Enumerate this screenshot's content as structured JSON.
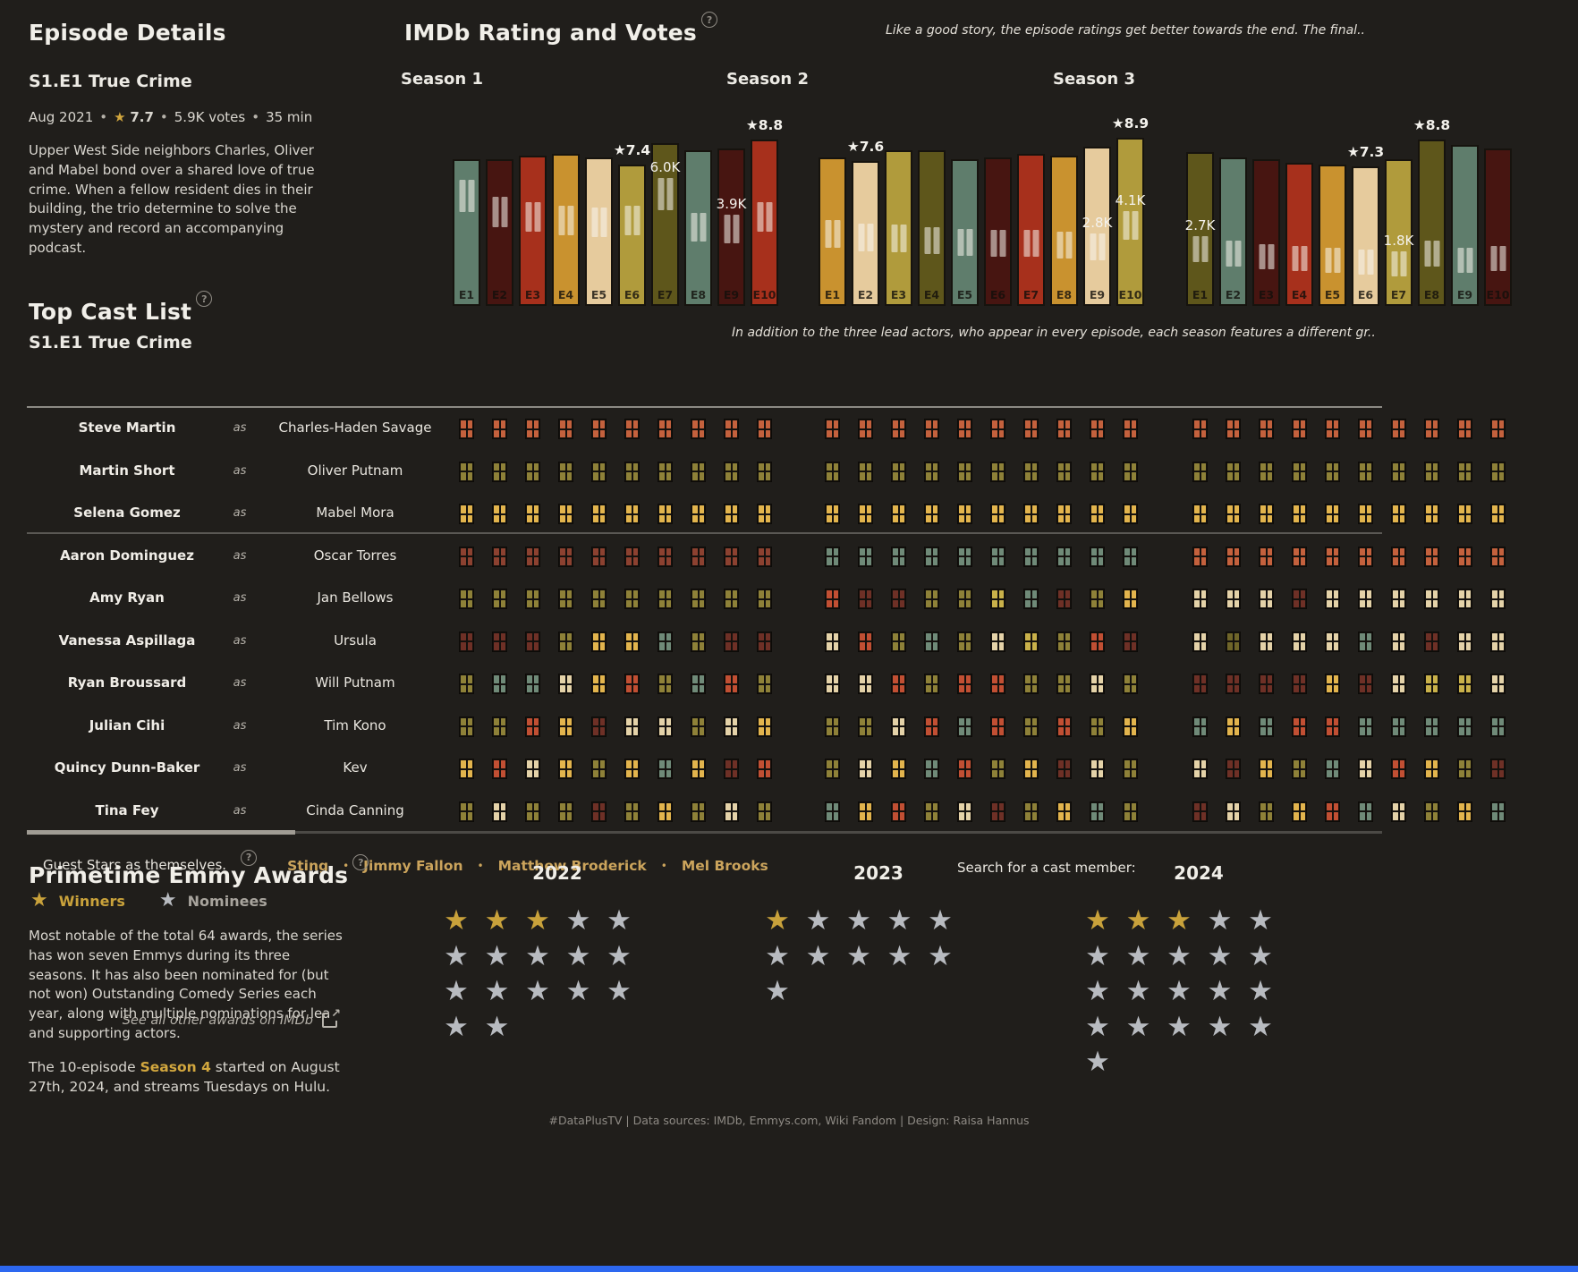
{
  "app": {
    "bg": "#201e1b",
    "accent_bar_color": "#2d68f0",
    "footer_text": "#DataPlusTV | Data sources: IMDb, Emmys.com, Wiki Fandom | Design: Raisa Hannus",
    "help_glyph": "?"
  },
  "episode_details": {
    "section_title": "Episode Details",
    "episode_title": "S1.E1 True Crime",
    "meta": {
      "date": "Aug 2021",
      "star": "★",
      "rating": "7.7",
      "votes": "5.9K votes",
      "runtime": "35 min",
      "sep": "•"
    },
    "description": "Upper West Side neighbors Charles, Oliver and Mabel bond over a shared love of true crime. When a fellow resident dies in their building, the trio determine to solve the mystery and record an accompanying podcast."
  },
  "rating_section": {
    "title": "IMDb Rating and Votes",
    "annotation": "Like a good story, the episode ratings get better towards the end. The final.."
  },
  "chart_data": {
    "type": "bar",
    "title": "IMDb Rating and Votes",
    "ylabel": "IMDb rating (bar height) and votes (window position)",
    "grid": false,
    "palette": [
      "#5f7d6c",
      "#471511",
      "#a7301c",
      "#c9922f",
      "#e6cb9d",
      "#b09b3c",
      "#5e561b"
    ],
    "episode_labels": [
      "E1",
      "E2",
      "E3",
      "E4",
      "E5",
      "E6",
      "E7",
      "E8",
      "E9",
      "E10"
    ],
    "seasons": [
      {
        "label": "Season 1",
        "ratings": [
          7.7,
          7.7,
          7.9,
          8.0,
          7.8,
          7.4,
          8.6,
          8.2,
          8.3,
          8.8
        ],
        "votes_k": [
          5.9,
          4.9,
          4.6,
          4.4,
          4.3,
          4.4,
          6.0,
          4.0,
          3.9,
          4.6
        ],
        "callouts": [
          {
            "ep": 5,
            "kind": "rating",
            "text": "★7.4"
          },
          {
            "ep": 6,
            "kind": "votes",
            "text": "6.0K"
          },
          {
            "ep": 8,
            "kind": "votes",
            "text": "3.9K"
          },
          {
            "ep": 9,
            "kind": "rating",
            "text": "★8.8"
          }
        ]
      },
      {
        "label": "Season 2",
        "ratings": [
          7.8,
          7.6,
          8.2,
          8.2,
          7.7,
          7.8,
          8.0,
          7.9,
          8.4,
          8.9
        ],
        "votes_k": [
          3.6,
          3.4,
          3.3,
          3.2,
          3.1,
          3.0,
          3.0,
          2.9,
          2.8,
          4.1
        ],
        "callouts": [
          {
            "ep": 1,
            "kind": "rating",
            "text": "★7.6"
          },
          {
            "ep": 8,
            "kind": "votes",
            "text": "2.8K"
          },
          {
            "ep": 9,
            "kind": "rating",
            "text": "★8.9"
          },
          {
            "ep": 9,
            "kind": "votes",
            "text": "4.1K"
          }
        ]
      },
      {
        "label": "Season 3",
        "ratings": [
          8.1,
          7.8,
          7.7,
          7.5,
          7.4,
          7.3,
          7.7,
          8.8,
          8.5,
          8.3
        ],
        "votes_k": [
          2.7,
          2.4,
          2.2,
          2.1,
          2.0,
          1.9,
          1.8,
          2.4,
          2.0,
          2.1
        ],
        "callouts": [
          {
            "ep": 0,
            "kind": "votes",
            "text": "2.7K"
          },
          {
            "ep": 5,
            "kind": "rating",
            "text": "★7.3"
          },
          {
            "ep": 6,
            "kind": "votes",
            "text": "1.8K"
          },
          {
            "ep": 7,
            "kind": "rating",
            "text": "★8.8"
          }
        ]
      }
    ]
  },
  "cast_section": {
    "title": "Top Cast List",
    "subtitle": "S1.E1 True Crime",
    "annotation": "In addition to the three lead actors, who appear in every episode, each season features a different gr..",
    "as_label": "as",
    "search_label": "Search for a cast member:",
    "palette": {
      "s": "#c4613d",
      "o": "#8e8138",
      "g": "#e2b44d",
      "b": "#8c4130",
      "m": "#6e3026",
      "t": "#6f8a78",
      "c": "#e4d2a8",
      "r": "#c14f33",
      "d": "#6f6529",
      "y": "#c9b14a"
    },
    "rows": [
      {
        "actor": "Steve Martin",
        "character": "Charles-Haden Savage",
        "cells": [
          "ssssssssss",
          "ssssssssss",
          "ssssssssss"
        ]
      },
      {
        "actor": "Martin Short",
        "character": "Oliver Putnam",
        "cells": [
          "oooooooooo",
          "oooooooooo",
          "oooooooooo"
        ]
      },
      {
        "actor": "Selena Gomez",
        "character": "Mabel Mora",
        "cells": [
          "gggggggggg",
          "gggggggggg",
          "gggggggggg"
        ]
      },
      {
        "actor": "Aaron Dominguez",
        "character": "Oscar Torres",
        "cells": [
          "bbbbbbbbbb",
          "tttttttttt",
          "ssssssssss"
        ]
      },
      {
        "actor": "Amy Ryan",
        "character": "Jan Bellows",
        "cells": [
          "oooooooooo",
          "rmmooytmog",
          "cccmcccccc"
        ]
      },
      {
        "actor": "Vanessa Aspillaga",
        "character": "Ursula",
        "cells": [
          "mmmoggtomm",
          "crotocyorm",
          "cdccctcmcc"
        ]
      },
      {
        "actor": "Ryan Broussard",
        "character": "Will Putnam",
        "cells": [
          "ottcgrotro",
          "ccrorrooco",
          "mmmmgmcyyc"
        ]
      },
      {
        "actor": "Julian Cihi",
        "character": "Tim Kono",
        "cells": [
          "oorgmccocg",
          "oocrtrorog",
          "tgtrrttttt"
        ]
      },
      {
        "actor": "Quincy Dunn-Baker",
        "character": "Kev",
        "cells": [
          "grcgogtgmr",
          "ocgtrogmco",
          "cmgotcrgom"
        ]
      },
      {
        "actor": "Tina Fey",
        "character": "Cinda Canning",
        "cells": [
          "ocoomogoco",
          "tgrocmogto",
          "mcogrtcogt"
        ]
      }
    ],
    "guest_label": "Guest Stars as themselves.",
    "guest_sep": "•",
    "guest_stars": [
      "Sting",
      "Jimmy Fallon",
      "Matthew Broderick",
      "Mel Brooks"
    ]
  },
  "emmy_section": {
    "title": "Primetime Emmy Awards",
    "star_glyph": "★",
    "winner_color": "#c9a23b",
    "nominee_color": "#b8bbc0",
    "legend": {
      "winners": "Winners",
      "nominees": "Nominees"
    },
    "description": "Most notable of the total 64 awards, the series has won seven Emmys during its three seasons. It has also been nominated for (but not won) Outstanding Comedy Series each year, along with multiple nominations for lead and supporting actors.",
    "link_text": "See all other awards on IMDb",
    "note_pre": "The 10-episode ",
    "note_link": "Season 4",
    "note_post": " started on August 27th, 2024, and streams Tuesdays on Hulu.",
    "years": [
      {
        "label": "2022",
        "wins": 3,
        "total_stars": 17
      },
      {
        "label": "2023",
        "wins": 1,
        "total_stars": 11
      },
      {
        "label": "2024",
        "wins": 3,
        "total_stars": 21
      }
    ]
  }
}
